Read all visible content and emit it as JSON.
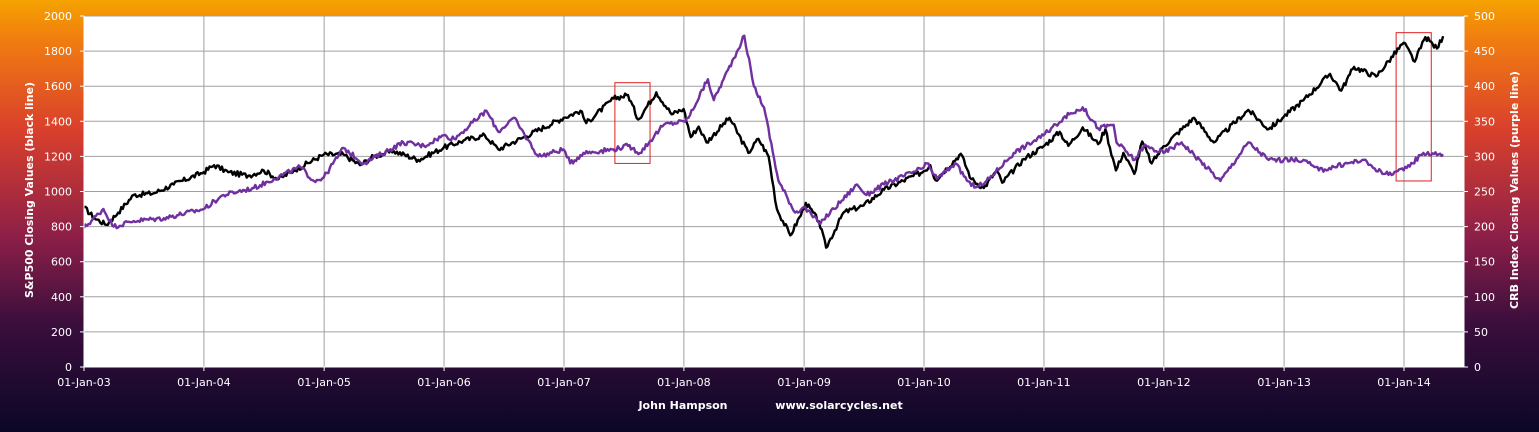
{
  "chart_data": {
    "type": "line",
    "ylabel_left": "S&P500 Closing  Values (black line)",
    "ylabel_right": "CRB Index Closing Values (purple line)",
    "footer_author": "John Hampson",
    "footer_site": "www.solarcycles.net",
    "x_range": [
      "2003-01-01",
      "2014-04-30"
    ],
    "x_ticks": [
      "01-Jan-03",
      "01-Jan-04",
      "01-Jan-05",
      "01-Jan-06",
      "01-Jan-07",
      "01-Jan-08",
      "01-Jan-09",
      "01-Jan-10",
      "01-Jan-11",
      "01-Jan-12",
      "01-Jan-13",
      "01-Jan-14"
    ],
    "ylim_left": [
      0,
      2000
    ],
    "yticks_left": [
      0,
      200,
      400,
      600,
      800,
      1000,
      1200,
      1400,
      1600,
      1800,
      2000
    ],
    "ylim_right": [
      0,
      500
    ],
    "yticks_right": [
      0,
      50,
      100,
      150,
      200,
      250,
      300,
      350,
      400,
      450,
      500
    ],
    "grid": true,
    "colors": {
      "sp500": "#000000",
      "crb": "#7030a0",
      "highlight": "#e02020",
      "plot_bg": "#ffffff",
      "grid": "#a0a0a0"
    },
    "series": [
      {
        "name": "S&P500",
        "axis": "left",
        "points": [
          [
            "2003-01-01",
            910
          ],
          [
            "2003-02-01",
            850
          ],
          [
            "2003-03-10",
            810
          ],
          [
            "2003-04-15",
            880
          ],
          [
            "2003-06-01",
            980
          ],
          [
            "2003-08-01",
            990
          ],
          [
            "2003-10-01",
            1040
          ],
          [
            "2003-12-31",
            1110
          ],
          [
            "2004-02-01",
            1150
          ],
          [
            "2004-03-15",
            1110
          ],
          [
            "2004-05-15",
            1090
          ],
          [
            "2004-07-01",
            1120
          ],
          [
            "2004-08-15",
            1070
          ],
          [
            "2004-10-01",
            1120
          ],
          [
            "2004-12-31",
            1210
          ],
          [
            "2005-03-01",
            1210
          ],
          [
            "2005-04-20",
            1150
          ],
          [
            "2005-06-01",
            1200
          ],
          [
            "2005-08-01",
            1230
          ],
          [
            "2005-10-15",
            1180
          ],
          [
            "2005-12-31",
            1250
          ],
          [
            "2006-03-01",
            1290
          ],
          [
            "2006-05-05",
            1320
          ],
          [
            "2006-06-15",
            1240
          ],
          [
            "2006-09-01",
            1310
          ],
          [
            "2006-12-31",
            1420
          ],
          [
            "2007-02-20",
            1460
          ],
          [
            "2007-03-10",
            1390
          ],
          [
            "2007-06-01",
            1530
          ],
          [
            "2007-07-15",
            1550
          ],
          [
            "2007-08-15",
            1410
          ],
          [
            "2007-10-09",
            1565
          ],
          [
            "2007-11-25",
            1440
          ],
          [
            "2007-12-31",
            1470
          ],
          [
            "2008-01-22",
            1310
          ],
          [
            "2008-02-15",
            1370
          ],
          [
            "2008-03-10",
            1280
          ],
          [
            "2008-05-19",
            1420
          ],
          [
            "2008-07-15",
            1220
          ],
          [
            "2008-08-15",
            1300
          ],
          [
            "2008-09-15",
            1200
          ],
          [
            "2008-10-10",
            900
          ],
          [
            "2008-11-20",
            750
          ],
          [
            "2008-12-31",
            900
          ],
          [
            "2009-01-06",
            935
          ],
          [
            "2009-02-15",
            830
          ],
          [
            "2009-03-09",
            680
          ],
          [
            "2009-05-01",
            880
          ],
          [
            "2009-07-01",
            920
          ],
          [
            "2009-09-01",
            1010
          ],
          [
            "2009-12-31",
            1115
          ],
          [
            "2010-01-20",
            1150
          ],
          [
            "2010-02-05",
            1065
          ],
          [
            "2010-04-23",
            1215
          ],
          [
            "2010-05-25",
            1070
          ],
          [
            "2010-07-02",
            1020
          ],
          [
            "2010-08-10",
            1120
          ],
          [
            "2010-08-27",
            1050
          ],
          [
            "2010-11-01",
            1185
          ],
          [
            "2010-12-31",
            1258
          ],
          [
            "2011-02-18",
            1340
          ],
          [
            "2011-03-16",
            1260
          ],
          [
            "2011-04-29",
            1365
          ],
          [
            "2011-06-15",
            1270
          ],
          [
            "2011-07-07",
            1355
          ],
          [
            "2011-08-08",
            1120
          ],
          [
            "2011-08-31",
            1220
          ],
          [
            "2011-10-03",
            1100
          ],
          [
            "2011-10-27",
            1285
          ],
          [
            "2011-11-25",
            1160
          ],
          [
            "2011-12-31",
            1258
          ],
          [
            "2012-04-02",
            1420
          ],
          [
            "2012-06-01",
            1280
          ],
          [
            "2012-09-14",
            1465
          ],
          [
            "2012-11-15",
            1355
          ],
          [
            "2012-12-31",
            1426
          ],
          [
            "2013-03-01",
            1520
          ],
          [
            "2013-05-21",
            1670
          ],
          [
            "2013-06-24",
            1575
          ],
          [
            "2013-08-02",
            1710
          ],
          [
            "2013-10-08",
            1655
          ],
          [
            "2013-12-31",
            1848
          ],
          [
            "2014-02-03",
            1740
          ],
          [
            "2014-03-07",
            1880
          ],
          [
            "2014-04-11",
            1815
          ],
          [
            "2014-04-30",
            1885
          ]
        ]
      },
      {
        "name": "CRB Index",
        "axis": "right",
        "points": [
          [
            "2003-01-01",
            198
          ],
          [
            "2003-03-01",
            225
          ],
          [
            "2003-04-01",
            200
          ],
          [
            "2003-06-01",
            208
          ],
          [
            "2003-09-01",
            212
          ],
          [
            "2003-12-31",
            225
          ],
          [
            "2004-03-01",
            245
          ],
          [
            "2004-04-15",
            250
          ],
          [
            "2004-06-01",
            255
          ],
          [
            "2004-08-01",
            268
          ],
          [
            "2004-10-20",
            285
          ],
          [
            "2004-12-01",
            265
          ],
          [
            "2004-12-31",
            270
          ],
          [
            "2005-03-01",
            312
          ],
          [
            "2005-05-01",
            290
          ],
          [
            "2005-08-30",
            320
          ],
          [
            "2005-11-01",
            315
          ],
          [
            "2005-12-31",
            330
          ],
          [
            "2006-02-01",
            325
          ],
          [
            "2006-05-10",
            365
          ],
          [
            "2006-06-15",
            335
          ],
          [
            "2006-08-01",
            355
          ],
          [
            "2006-10-15",
            300
          ],
          [
            "2006-12-31",
            310
          ],
          [
            "2007-01-20",
            290
          ],
          [
            "2007-03-01",
            305
          ],
          [
            "2007-06-01",
            310
          ],
          [
            "2007-07-15",
            315
          ],
          [
            "2007-08-20",
            305
          ],
          [
            "2007-11-01",
            345
          ],
          [
            "2007-12-31",
            350
          ],
          [
            "2008-01-15",
            355
          ],
          [
            "2008-03-14",
            410
          ],
          [
            "2008-04-01",
            380
          ],
          [
            "2008-05-01",
            410
          ],
          [
            "2008-06-01",
            440
          ],
          [
            "2008-07-03",
            472
          ],
          [
            "2008-08-01",
            400
          ],
          [
            "2008-09-01",
            370
          ],
          [
            "2008-10-15",
            265
          ],
          [
            "2008-12-05",
            220
          ],
          [
            "2008-12-31",
            228
          ],
          [
            "2009-02-15",
            205
          ],
          [
            "2009-03-01",
            210
          ],
          [
            "2009-06-11",
            260
          ],
          [
            "2009-07-10",
            245
          ],
          [
            "2009-09-01",
            260
          ],
          [
            "2009-12-31",
            284
          ],
          [
            "2010-01-10",
            290
          ],
          [
            "2010-02-10",
            268
          ],
          [
            "2010-04-05",
            290
          ],
          [
            "2010-05-25",
            258
          ],
          [
            "2010-07-01",
            260
          ],
          [
            "2010-10-01",
            305
          ],
          [
            "2010-12-31",
            330
          ],
          [
            "2011-03-01",
            355
          ],
          [
            "2011-04-29",
            370
          ],
          [
            "2011-06-15",
            340
          ],
          [
            "2011-08-01",
            345
          ],
          [
            "2011-08-10",
            320
          ],
          [
            "2011-10-04",
            295
          ],
          [
            "2011-11-01",
            315
          ],
          [
            "2011-12-31",
            305
          ],
          [
            "2012-02-24",
            320
          ],
          [
            "2012-06-21",
            265
          ],
          [
            "2012-09-14",
            320
          ],
          [
            "2012-11-15",
            295
          ],
          [
            "2012-12-31",
            295
          ],
          [
            "2013-03-01",
            295
          ],
          [
            "2013-04-17",
            280
          ],
          [
            "2013-08-27",
            295
          ],
          [
            "2013-11-01",
            275
          ],
          [
            "2013-12-31",
            280
          ],
          [
            "2014-03-01",
            305
          ],
          [
            "2014-04-30",
            303
          ]
        ]
      }
    ],
    "highlight_boxes": [
      {
        "x0": "2007-06-05",
        "x1": "2007-09-20",
        "y0": 1160,
        "y1": 1620
      },
      {
        "x0": "2013-12-08",
        "x1": "2014-03-25",
        "y0": 1060,
        "y1": 1905
      }
    ]
  }
}
